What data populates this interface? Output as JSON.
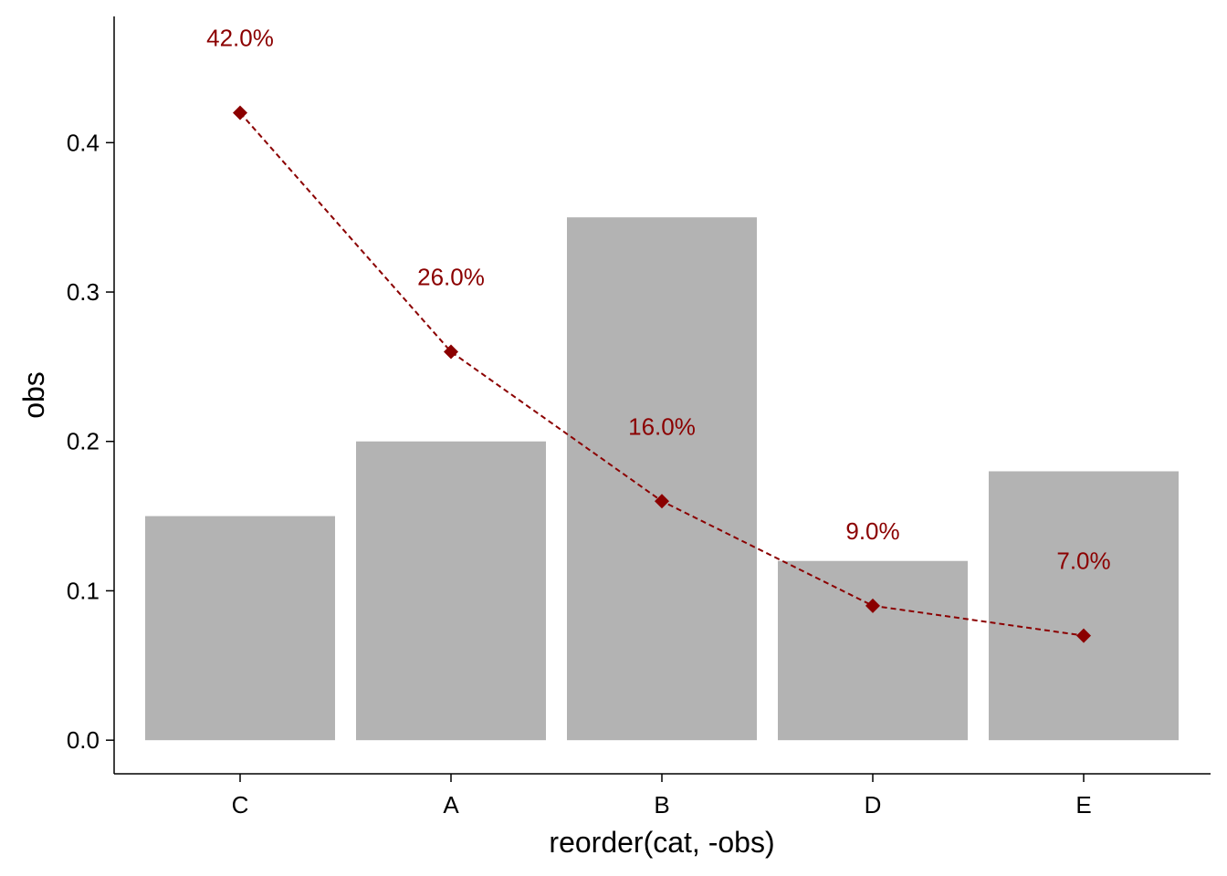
{
  "chart_data": {
    "type": "bar",
    "categories": [
      "C",
      "A",
      "B",
      "D",
      "E"
    ],
    "series": [
      {
        "type": "bar",
        "values": [
          0.15,
          0.2,
          0.35,
          0.12,
          0.18
        ]
      },
      {
        "type": "line",
        "values": [
          0.42,
          0.26,
          0.16,
          0.09,
          0.07
        ],
        "labels": [
          "42.0%",
          "26.0%",
          "16.0%",
          "9.0%",
          "7.0%"
        ]
      }
    ],
    "xlabel": "reorder(cat, -obs)",
    "ylabel": "obs",
    "ylim": [
      -0.0225,
      0.4845
    ],
    "yticks": [
      "0.0",
      "0.1",
      "0.2",
      "0.3",
      "0.4"
    ],
    "grid": false,
    "colors": {
      "bar": "#b3b3b3",
      "line": "#8b0000",
      "label": "#8b0000"
    }
  }
}
